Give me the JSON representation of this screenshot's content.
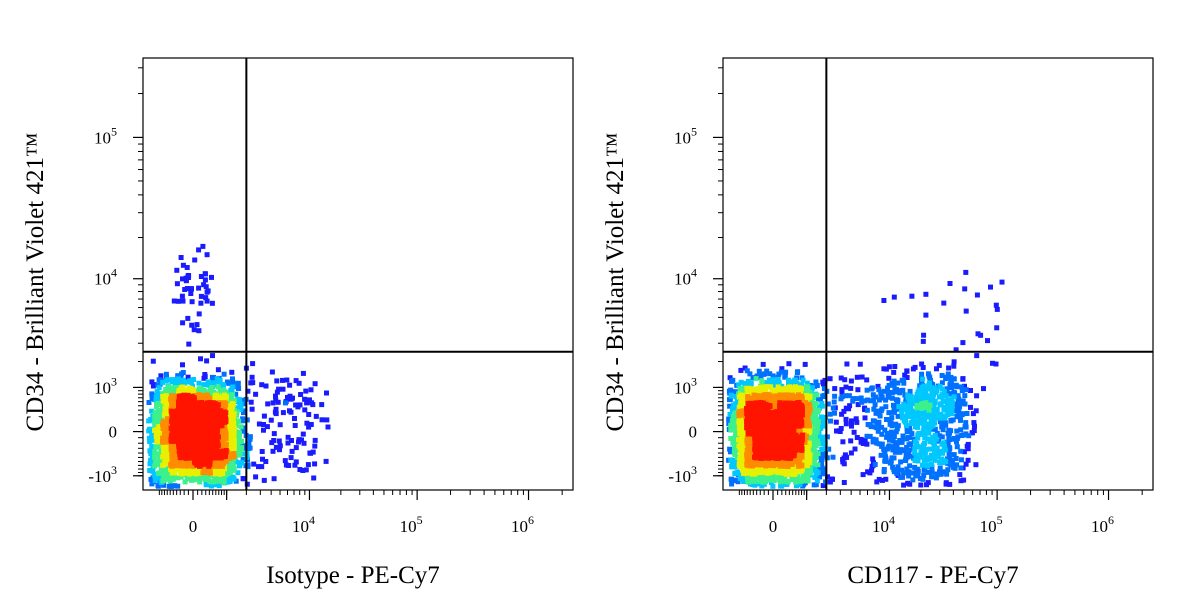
{
  "chart_data": [
    {
      "type": "scatter",
      "subtype": "flow-cytometry-density-dot-plot",
      "xlabel": "Isotype - PE-Cy7",
      "ylabel": "CD34 - Brilliant Violet 421™",
      "x_scale": "biexponential",
      "y_scale": "biexponential",
      "x_ticks": [
        {
          "base": "0",
          "exp": ""
        },
        {
          "base": "10",
          "exp": "4"
        },
        {
          "base": "10",
          "exp": "5"
        },
        {
          "base": "10",
          "exp": "6"
        }
      ],
      "y_ticks": [
        {
          "base": "10",
          "exp": "5"
        },
        {
          "base": "10",
          "exp": "4"
        },
        {
          "base": "10",
          "exp": "3"
        },
        {
          "base": "0",
          "exp": ""
        },
        {
          "base": "-10",
          "exp": "3"
        }
      ],
      "quadrant_gate": {
        "x": 2000,
        "y": 2500
      },
      "density_colors": [
        "#1b1bff",
        "#0070ff",
        "#00c8ff",
        "#3cf08c",
        "#e6f000",
        "#ff8c00",
        "#ff1400"
      ],
      "populations": [
        {
          "x": 0,
          "y": 0,
          "x_spread": 700,
          "y_spread": 600,
          "count": 2400
        },
        {
          "x": 0,
          "y": 9000,
          "x_spread": 250,
          "y_spread": 4000,
          "count": 55
        },
        {
          "x": 4000,
          "y": 300,
          "x_spread": 4000,
          "y_spread": 700,
          "count": 170
        }
      ]
    },
    {
      "type": "scatter",
      "subtype": "flow-cytometry-density-dot-plot",
      "xlabel": "CD117 - PE-Cy7",
      "ylabel": "CD34 - Brilliant Violet 421™",
      "x_scale": "biexponential",
      "y_scale": "biexponential",
      "x_ticks": [
        {
          "base": "0",
          "exp": ""
        },
        {
          "base": "10",
          "exp": "4"
        },
        {
          "base": "10",
          "exp": "5"
        },
        {
          "base": "10",
          "exp": "6"
        }
      ],
      "y_ticks": [
        {
          "base": "10",
          "exp": "5"
        },
        {
          "base": "10",
          "exp": "4"
        },
        {
          "base": "10",
          "exp": "3"
        },
        {
          "base": "0",
          "exp": ""
        },
        {
          "base": "-10",
          "exp": "3"
        }
      ],
      "quadrant_gate": {
        "x": 2000,
        "y": 2500
      },
      "density_colors": [
        "#1b1bff",
        "#0070ff",
        "#00c8ff",
        "#3cf08c",
        "#e6f000",
        "#ff8c00",
        "#ff1400"
      ],
      "populations": [
        {
          "x": 0,
          "y": 0,
          "x_spread": 700,
          "y_spread": 600,
          "count": 2400
        },
        {
          "x": 12000,
          "y": 200,
          "x_spread": 18000,
          "y_spread": 700,
          "count": 1100
        },
        {
          "x": 40000,
          "y": 6000,
          "x_spread": 40000,
          "y_spread": 3000,
          "count": 30
        }
      ]
    }
  ]
}
